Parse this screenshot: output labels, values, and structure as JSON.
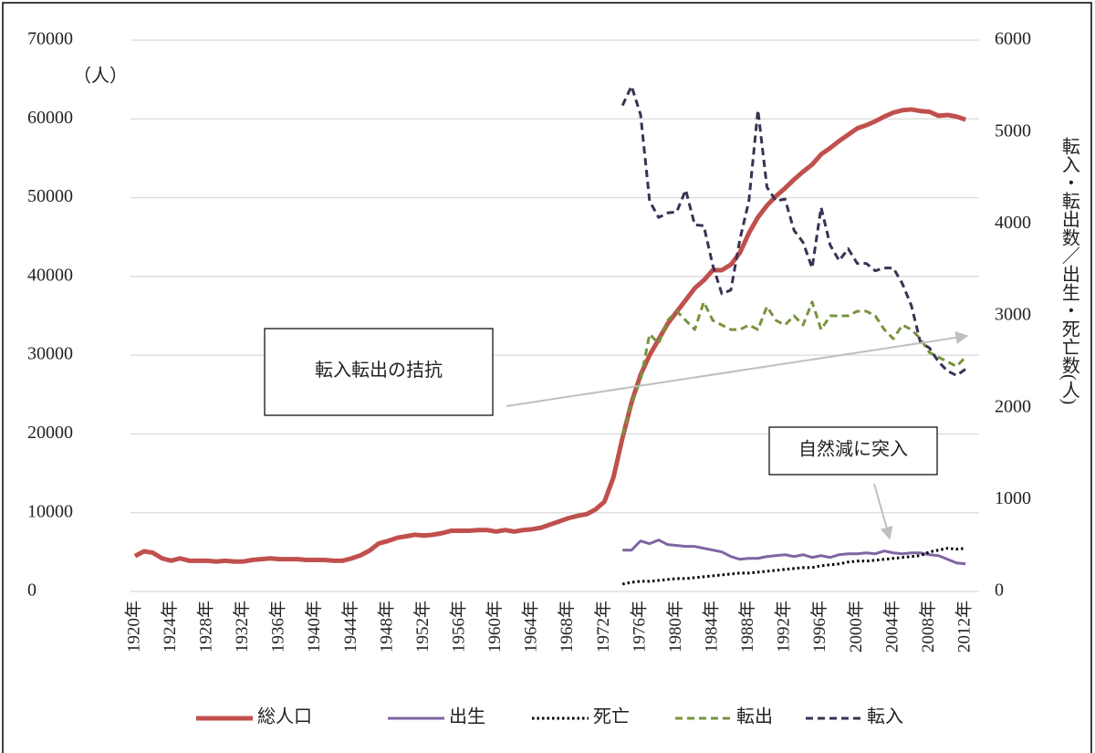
{
  "chart_data": {
    "type": "line",
    "y_label": "（人）",
    "y2_label": "転入・転出数／出生・死亡数(人)",
    "categories": [
      "1920年",
      null,
      null,
      null,
      "1924年",
      null,
      null,
      null,
      "1928年",
      null,
      null,
      null,
      "1932年",
      null,
      null,
      null,
      "1936年",
      null,
      null,
      null,
      "1940年",
      null,
      null,
      null,
      "1944年",
      null,
      null,
      null,
      "1948年",
      null,
      null,
      null,
      "1952年",
      null,
      null,
      null,
      "1956年",
      null,
      null,
      null,
      "1960年",
      null,
      null,
      null,
      "1964年",
      null,
      null,
      null,
      "1968年",
      null,
      null,
      null,
      "1972年",
      null,
      null,
      null,
      "1976年",
      null,
      null,
      null,
      "1980年",
      null,
      null,
      null,
      "1984年",
      null,
      null,
      null,
      "1988年",
      null,
      null,
      null,
      "1992年",
      null,
      null,
      null,
      "1996年",
      null,
      null,
      null,
      "2000年",
      null,
      null,
      null,
      "2004年",
      null,
      null,
      null,
      "2008年",
      null,
      null,
      null,
      "2012年",
      null
    ],
    "ylim": [
      0,
      70000
    ],
    "yticks": [
      0,
      10000,
      20000,
      30000,
      40000,
      50000,
      60000,
      70000
    ],
    "y2lim": [
      0,
      6000
    ],
    "y2ticks": [
      0,
      1000,
      2000,
      3000,
      4000,
      5000,
      6000
    ],
    "grid": true,
    "legend": "bottom",
    "series": [
      {
        "name": "総人口",
        "color": "#c0504d",
        "dash": "solid",
        "axis": "y",
        "values": [
          4500,
          5100,
          4900,
          4200,
          3900,
          4200,
          3900,
          3900,
          3900,
          3800,
          3900,
          3800,
          3800,
          4000,
          4100,
          4200,
          4100,
          4100,
          4100,
          4000,
          4000,
          4000,
          3900,
          3900,
          4200,
          4600,
          5200,
          6100,
          6400,
          6800,
          7000,
          7200,
          7100,
          7200,
          7400,
          7700,
          7700,
          7700,
          7800,
          7800,
          7600,
          7800,
          7600,
          7800,
          7900,
          8100,
          8500,
          8900,
          9300,
          9600,
          9800,
          10400,
          11400,
          14500,
          19500,
          24000,
          27500,
          30000,
          32000,
          34000,
          35500,
          37000,
          38500,
          39500,
          40800,
          40800,
          41500,
          43000,
          45500,
          47500,
          49000,
          50200,
          51200,
          52300,
          53300,
          54200,
          55500,
          56300,
          57200,
          58000,
          58800,
          59200,
          59700,
          60300,
          60800,
          61100,
          61200,
          61000,
          60900,
          60400,
          60500,
          60300,
          59900,
          null
        ]
      },
      {
        "name": "出生",
        "color": "#8064a2",
        "dash": "solid",
        "axis": "y2",
        "values": [
          null,
          null,
          null,
          null,
          null,
          null,
          null,
          null,
          null,
          null,
          null,
          null,
          null,
          null,
          null,
          null,
          null,
          null,
          null,
          null,
          null,
          null,
          null,
          null,
          null,
          null,
          null,
          null,
          null,
          null,
          null,
          null,
          null,
          null,
          null,
          null,
          null,
          null,
          null,
          null,
          null,
          null,
          null,
          null,
          null,
          null,
          null,
          null,
          null,
          null,
          null,
          null,
          null,
          null,
          450,
          450,
          550,
          520,
          560,
          510,
          500,
          490,
          490,
          470,
          450,
          430,
          380,
          350,
          360,
          360,
          380,
          390,
          400,
          380,
          400,
          370,
          390,
          370,
          400,
          410,
          410,
          420,
          410,
          440,
          420,
          410,
          420,
          420,
          400,
          390,
          350,
          310,
          300,
          null
        ]
      },
      {
        "name": "死亡",
        "color": "#000000",
        "dash": "dotted",
        "axis": "y2",
        "values": [
          null,
          null,
          null,
          null,
          null,
          null,
          null,
          null,
          null,
          null,
          null,
          null,
          null,
          null,
          null,
          null,
          null,
          null,
          null,
          null,
          null,
          null,
          null,
          null,
          null,
          null,
          null,
          null,
          null,
          null,
          null,
          null,
          null,
          null,
          null,
          null,
          null,
          null,
          null,
          null,
          null,
          null,
          null,
          null,
          null,
          null,
          null,
          null,
          null,
          null,
          null,
          null,
          null,
          null,
          80,
          100,
          110,
          110,
          120,
          130,
          140,
          140,
          150,
          160,
          170,
          180,
          190,
          200,
          200,
          210,
          220,
          230,
          240,
          250,
          260,
          260,
          280,
          290,
          300,
          320,
          330,
          330,
          340,
          350,
          360,
          370,
          380,
          390,
          430,
          450,
          470,
          460,
          470,
          null
        ]
      },
      {
        "name": "転出",
        "color": "#77933c",
        "dash": "dashed",
        "axis": "y2",
        "values": [
          null,
          null,
          null,
          null,
          null,
          null,
          null,
          null,
          null,
          null,
          null,
          null,
          null,
          null,
          null,
          null,
          null,
          null,
          null,
          null,
          null,
          null,
          null,
          null,
          null,
          null,
          null,
          null,
          null,
          null,
          null,
          null,
          null,
          null,
          null,
          null,
          null,
          null,
          null,
          null,
          null,
          null,
          null,
          null,
          null,
          null,
          null,
          null,
          null,
          null,
          null,
          null,
          null,
          null,
          1700,
          2050,
          2300,
          2800,
          2700,
          2950,
          3050,
          2950,
          2850,
          3150,
          2950,
          2900,
          2850,
          2850,
          2900,
          2850,
          3100,
          2950,
          2900,
          3000,
          2900,
          3150,
          2850,
          3000,
          3000,
          3000,
          3050,
          3050,
          3000,
          2850,
          2750,
          2900,
          2850,
          2750,
          2600,
          2550,
          2500,
          2450,
          2550,
          null
        ]
      },
      {
        "name": "転入",
        "color": "#3b3153",
        "dash": "dashed",
        "axis": "y2",
        "values": [
          null,
          null,
          null,
          null,
          null,
          null,
          null,
          null,
          null,
          null,
          null,
          null,
          null,
          null,
          null,
          null,
          null,
          null,
          null,
          null,
          null,
          null,
          null,
          null,
          null,
          null,
          null,
          null,
          null,
          null,
          null,
          null,
          null,
          null,
          null,
          null,
          null,
          null,
          null,
          null,
          null,
          null,
          null,
          null,
          null,
          null,
          null,
          null,
          null,
          null,
          null,
          null,
          null,
          null,
          5290,
          5500,
          5190,
          4250,
          4070,
          4120,
          4130,
          4370,
          3990,
          3980,
          3550,
          3240,
          3280,
          3830,
          4250,
          5240,
          4400,
          4250,
          4270,
          3930,
          3800,
          3520,
          4180,
          3770,
          3600,
          3730,
          3570,
          3570,
          3490,
          3520,
          3520,
          3350,
          3110,
          2710,
          2650,
          2500,
          2400,
          2350,
          2420,
          null
        ]
      }
    ],
    "annotations": [
      {
        "text": "転入転出の拮抗"
      },
      {
        "text": "自然減に突入"
      }
    ]
  }
}
